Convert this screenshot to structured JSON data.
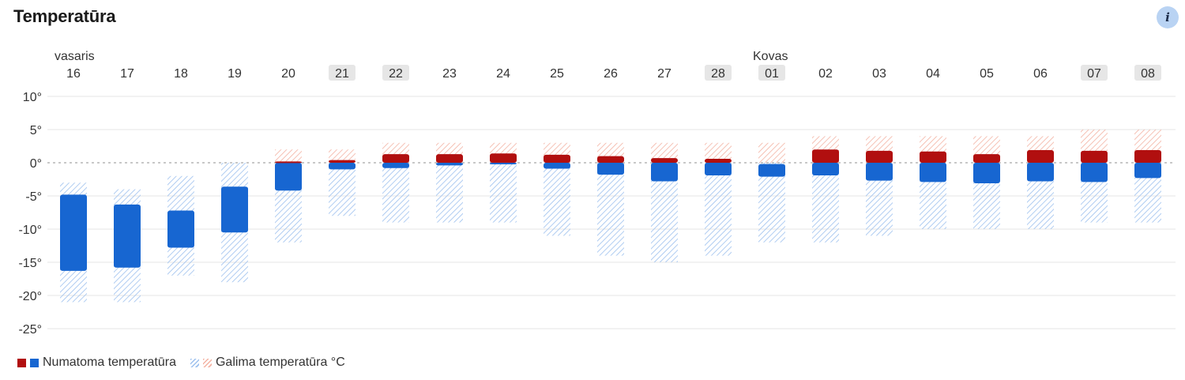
{
  "header": {
    "title": "Temperatūra",
    "info_icon_label": "i"
  },
  "legend": {
    "expected": "Numatoma temperatūra",
    "possible": "Galima temperatūra °C"
  },
  "colors": {
    "warm_bar": "#b10f0f",
    "cold_bar": "#1766d1",
    "warm_range": "#f3b2a2",
    "cold_range": "#9cc0ee",
    "highlight_bg": "#e6e6e6",
    "grid": "#e6e6e6",
    "zero_line": "#b5b5b5"
  },
  "chart_data": {
    "type": "bar",
    "month_labels": [
      {
        "label": "vasaris",
        "index": 0
      },
      {
        "label": "Kovas",
        "index": 13
      }
    ],
    "categories": [
      "16",
      "17",
      "18",
      "19",
      "20",
      "21",
      "22",
      "23",
      "24",
      "25",
      "26",
      "27",
      "28",
      "01",
      "02",
      "03",
      "04",
      "05",
      "06",
      "07",
      "08"
    ],
    "highlighted": [
      "21",
      "22",
      "28",
      "01",
      "07",
      "08"
    ],
    "y_ticks": [
      "10°",
      "5°",
      "0°",
      "-5°",
      "-10°",
      "-15°",
      "-20°",
      "-25°"
    ],
    "ylim": [
      -25,
      10
    ],
    "series": [
      {
        "name": "Numatoma temperatūra",
        "min": [
          -16.3,
          -15.8,
          -12.8,
          -10.5,
          -4.2,
          -1.0,
          -0.8,
          -0.4,
          -0.1,
          -0.9,
          -1.8,
          -2.8,
          -1.9,
          -2.1,
          -1.9,
          -2.7,
          -2.9,
          -3.1,
          -2.8,
          -2.9,
          -2.3
        ],
        "max": [
          -4.8,
          -6.3,
          -7.2,
          -3.6,
          0.2,
          0.4,
          1.3,
          1.3,
          1.4,
          1.2,
          1.0,
          0.7,
          0.6,
          -0.2,
          2.0,
          1.8,
          1.7,
          1.3,
          1.9,
          1.8,
          1.9
        ]
      },
      {
        "name": "Galima temperatūra °C",
        "min": [
          -21,
          -21,
          -17,
          -18,
          -12,
          -8,
          -9,
          -9,
          -9,
          -11,
          -14,
          -15,
          -14,
          -12,
          -12,
          -11,
          -10,
          -10,
          -10,
          -9,
          -9
        ],
        "max": [
          -3,
          -4,
          -2,
          0,
          2,
          2,
          3,
          3,
          3,
          3,
          3,
          3,
          3,
          3,
          4,
          4,
          4,
          4,
          4,
          5,
          5
        ]
      }
    ]
  }
}
